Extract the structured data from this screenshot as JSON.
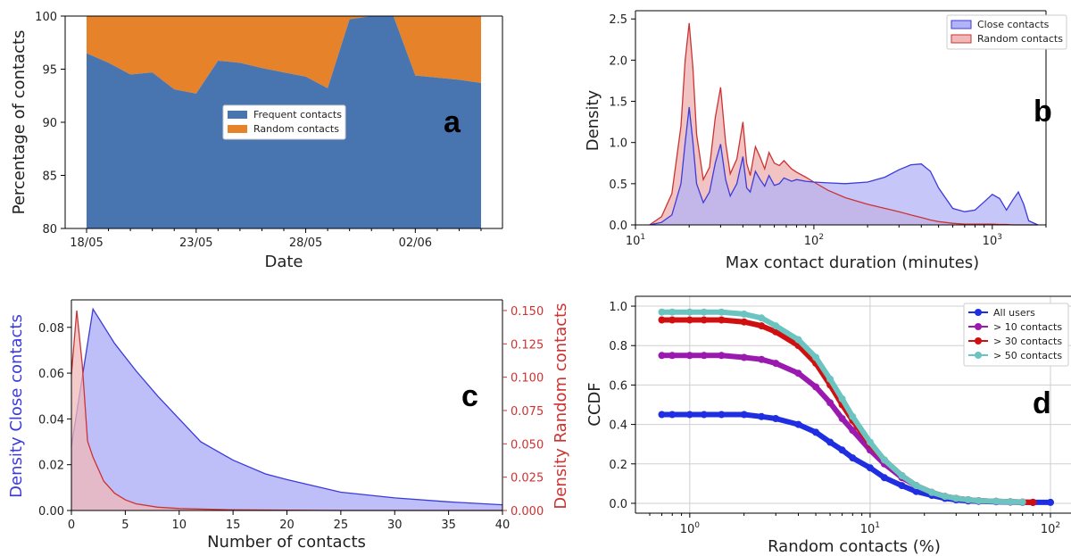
{
  "colors": {
    "frequent": "#4874b0",
    "random_orange": "#e6822a",
    "close_blue": "#3b3bdc",
    "close_fill": "#b3b3f7",
    "random_red": "#cc3333",
    "random_fill": "#f0b8b8",
    "all_users": "#1f2ee0",
    "gt10": "#9a1ab0",
    "gt30": "#d01010",
    "gt50": "#6bc4bf"
  },
  "chart_data": [
    {
      "panel": "a",
      "type": "area",
      "xlabel": "Date",
      "ylabel": "Percentage of contacts",
      "ylim": [
        80,
        100
      ],
      "yticks": [
        "80",
        "85",
        "90",
        "95",
        "100"
      ],
      "xticks": [
        "18/05",
        "23/05",
        "28/05",
        "02/06"
      ],
      "xtick_days": [
        0,
        5,
        10,
        15
      ],
      "x_days": [
        0,
        1,
        2,
        3,
        4,
        5,
        6,
        7,
        8,
        9,
        10,
        11,
        12,
        13,
        14,
        15,
        16,
        17,
        18
      ],
      "legend_position": "center",
      "series": [
        {
          "name": "Frequent contacts",
          "values": [
            96.5,
            95.6,
            94.5,
            94.7,
            93.1,
            92.7,
            95.8,
            95.6,
            95.1,
            94.7,
            94.3,
            93.2,
            99.7,
            100,
            100,
            94.4,
            94.2,
            94.0,
            93.7
          ]
        },
        {
          "name": "Random contacts",
          "values": [
            3.5,
            4.4,
            5.5,
            5.3,
            6.9,
            7.3,
            4.2,
            4.4,
            4.9,
            5.3,
            5.7,
            6.8,
            0.3,
            0,
            0,
            5.6,
            5.8,
            6.0,
            6.3
          ]
        }
      ]
    },
    {
      "panel": "b",
      "type": "area",
      "xscale": "log",
      "xlabel": "Max contact duration (minutes)",
      "ylabel": "Density",
      "xlim": [
        10,
        2000
      ],
      "ylim": [
        0,
        2.6
      ],
      "yticks": [
        "0.0",
        "0.5",
        "1.0",
        "1.5",
        "2.0",
        "2.5"
      ],
      "legend_position": "top-right",
      "series": [
        {
          "name": "Close contacts",
          "x": [
            12,
            14,
            16,
            18,
            19,
            20,
            21,
            22,
            24,
            26,
            28,
            30,
            32,
            34,
            37,
            40,
            42,
            44,
            47,
            50,
            53,
            56,
            60,
            64,
            68,
            75,
            80,
            90,
            100,
            120,
            150,
            200,
            250,
            300,
            350,
            400,
            450,
            500,
            600,
            700,
            800,
            900,
            1000,
            1100,
            1200,
            1300,
            1400,
            1500,
            1600,
            1800
          ],
          "values": [
            0,
            0.03,
            0.12,
            0.5,
            1.0,
            1.43,
            1.0,
            0.5,
            0.27,
            0.4,
            0.75,
            0.98,
            0.55,
            0.35,
            0.5,
            0.83,
            0.45,
            0.4,
            0.65,
            0.55,
            0.47,
            0.6,
            0.48,
            0.5,
            0.57,
            0.53,
            0.55,
            0.53,
            0.52,
            0.51,
            0.5,
            0.52,
            0.58,
            0.67,
            0.73,
            0.74,
            0.65,
            0.45,
            0.2,
            0.16,
            0.18,
            0.28,
            0.37,
            0.32,
            0.18,
            0.3,
            0.4,
            0.25,
            0.05,
            0
          ]
        },
        {
          "name": "Random contacts",
          "x": [
            12,
            14,
            16,
            18,
            19,
            20,
            21,
            22,
            24,
            26,
            28,
            30,
            32,
            34,
            37,
            40,
            42,
            44,
            47,
            50,
            53,
            56,
            60,
            64,
            68,
            75,
            80,
            90,
            100,
            120,
            150,
            200,
            250,
            300,
            350,
            400,
            450,
            500,
            600,
            700,
            800,
            900,
            1000,
            1100,
            1200,
            1300,
            1400,
            1500,
            1600,
            1800
          ],
          "values": [
            0,
            0.1,
            0.38,
            1.2,
            2.0,
            2.45,
            1.9,
            1.1,
            0.55,
            0.7,
            1.3,
            1.67,
            1.0,
            0.62,
            0.8,
            1.25,
            0.75,
            0.6,
            0.95,
            0.82,
            0.68,
            0.88,
            0.75,
            0.72,
            0.78,
            0.68,
            0.64,
            0.58,
            0.52,
            0.42,
            0.33,
            0.25,
            0.2,
            0.16,
            0.12,
            0.09,
            0.06,
            0.04,
            0.02,
            0.01,
            0.01,
            0.01,
            0.01,
            0.005,
            0.005,
            0,
            0,
            0,
            0,
            0
          ]
        }
      ]
    },
    {
      "panel": "c",
      "type": "area",
      "xlabel": "Number of contacts",
      "ylabel": "Density Close contacts",
      "ylabel_right": "Density Random contacts",
      "xlim": [
        0,
        40
      ],
      "ylim": [
        0,
        0.092
      ],
      "ylim_right": [
        0,
        0.158
      ],
      "xticks": [
        "0",
        "5",
        "10",
        "15",
        "20",
        "25",
        "30",
        "35",
        "40"
      ],
      "yticks": [
        "0.00",
        "0.02",
        "0.04",
        "0.06",
        "0.08"
      ],
      "yticks_right": [
        "0.000",
        "0.025",
        "0.050",
        "0.075",
        "0.100",
        "0.125",
        "0.150"
      ],
      "series": [
        {
          "name": "Close contacts",
          "axis": "left",
          "x": [
            0,
            2,
            4,
            6,
            8,
            10,
            12,
            15,
            18,
            20,
            25,
            30,
            35,
            40
          ],
          "values": [
            0.028,
            0.088,
            0.073,
            0.061,
            0.05,
            0.04,
            0.03,
            0.022,
            0.016,
            0.0135,
            0.008,
            0.0055,
            0.0038,
            0.0025
          ]
        },
        {
          "name": "Random contacts",
          "axis": "right",
          "x": [
            0,
            0.5,
            1,
            1.5,
            2,
            3,
            4,
            5,
            6,
            8,
            10,
            15,
            20,
            25,
            30,
            40
          ],
          "values": [
            0.102,
            0.15,
            0.11,
            0.052,
            0.04,
            0.022,
            0.013,
            0.008,
            0.005,
            0.0025,
            0.0015,
            0.0005,
            0.0002,
            0,
            0,
            0
          ]
        }
      ]
    },
    {
      "panel": "d",
      "type": "scatter",
      "xscale": "log",
      "xlabel": "Random contacts (%)",
      "ylabel": "CCDF",
      "xlim": [
        0.5,
        130
      ],
      "ylim": [
        -0.05,
        1.05
      ],
      "yticks": [
        "0.0",
        "0.2",
        "0.4",
        "0.6",
        "0.8",
        "1.0"
      ],
      "grid": true,
      "legend_position": "top-right",
      "x": [
        0.7,
        0.8,
        1,
        1.2,
        1.5,
        2,
        2.5,
        3,
        4,
        5,
        6,
        7,
        8,
        10,
        12,
        15,
        18,
        22,
        26,
        30,
        35,
        40,
        50,
        60,
        70,
        80,
        100
      ],
      "series": [
        {
          "name": "All users",
          "values": [
            0.45,
            0.45,
            0.45,
            0.45,
            0.45,
            0.45,
            0.44,
            0.43,
            0.4,
            0.36,
            0.31,
            0.27,
            0.23,
            0.18,
            0.13,
            0.09,
            0.06,
            0.04,
            0.025,
            0.018,
            0.012,
            0.01,
            0.008,
            0.006,
            0.005,
            0.005,
            0.005
          ]
        },
        {
          "name": "> 10 contacts",
          "values": [
            0.75,
            0.75,
            0.75,
            0.75,
            0.75,
            0.74,
            0.73,
            0.71,
            0.66,
            0.59,
            0.51,
            0.43,
            0.37,
            0.27,
            0.2,
            0.13,
            0.09,
            0.055,
            0.035,
            0.025,
            0.018,
            0.013,
            0.01,
            0.008,
            0.006,
            0.005,
            null
          ]
        },
        {
          "name": "> 30 contacts",
          "values": [
            0.93,
            0.93,
            0.93,
            0.93,
            0.93,
            0.92,
            0.9,
            0.87,
            0.8,
            0.71,
            0.6,
            0.5,
            0.42,
            0.3,
            0.22,
            0.14,
            0.09,
            0.055,
            0.035,
            0.025,
            0.018,
            0.013,
            0.01,
            0.008,
            0.006,
            0.005,
            null
          ]
        },
        {
          "name": "> 50 contacts",
          "values": [
            0.97,
            0.97,
            0.97,
            0.97,
            0.97,
            0.96,
            0.94,
            0.9,
            0.83,
            0.74,
            0.63,
            0.53,
            0.44,
            0.31,
            0.22,
            0.14,
            0.09,
            0.055,
            0.035,
            0.025,
            0.018,
            0.013,
            0.01,
            0.008,
            0.006,
            null,
            null
          ]
        }
      ]
    }
  ],
  "panel_letters": {
    "a": "a",
    "b": "b",
    "c": "c",
    "d": "d"
  }
}
